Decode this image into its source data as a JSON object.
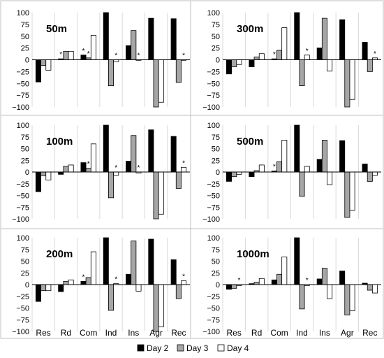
{
  "legend": {
    "entries": [
      {
        "label": "Day 2",
        "color": "#000000"
      },
      {
        "label": "Day 3",
        "color": "#a6a6a6"
      },
      {
        "label": "Day 4",
        "color": "#ffffff"
      }
    ]
  },
  "chart_data": [
    {
      "type": "bar",
      "title": "50m",
      "categories": [
        "Res",
        "Rd",
        "Com",
        "Ind",
        "Ins",
        "Agr",
        "Rec"
      ],
      "ylim": [
        -100,
        100
      ],
      "yticks": [
        -100,
        -75,
        -50,
        -25,
        0,
        25,
        50,
        75,
        100
      ],
      "tick_labels": [
        "−100",
        "−75",
        "−50",
        "−25",
        "0",
        "25",
        "50",
        "75",
        "100"
      ],
      "grid": false,
      "series": [
        {
          "name": "Day 2",
          "values": [
            -47,
            2,
            10,
            100,
            30,
            88,
            87
          ]
        },
        {
          "name": "Day 3",
          "values": [
            -12,
            18,
            4,
            -55,
            62,
            -100,
            -48
          ]
        },
        {
          "name": "Day 4",
          "values": [
            -22,
            18,
            52,
            -4,
            -1,
            -90,
            0
          ]
        }
      ],
      "asterisks": [
        [
          "Rd",
          0
        ],
        [
          "Com",
          0
        ],
        [
          "Com",
          1
        ],
        [
          "Ind",
          2
        ],
        [
          "Ins",
          2
        ],
        [
          "Rec",
          2
        ]
      ]
    },
    {
      "type": "bar",
      "title": "300m",
      "categories": [
        "Res",
        "Rd",
        "Com",
        "Ind",
        "Ins",
        "Agr",
        "Rec"
      ],
      "ylim": [
        -100,
        100
      ],
      "yticks": [
        -100,
        -75,
        -50,
        -25,
        0,
        25,
        50,
        75,
        100
      ],
      "tick_labels": [
        "−100",
        "−75",
        "−50",
        "−25",
        "0",
        "25",
        "50",
        "75",
        "100"
      ],
      "grid": false,
      "series": [
        {
          "name": "Day 2",
          "values": [
            -30,
            -15,
            2,
            100,
            25,
            85,
            37
          ]
        },
        {
          "name": "Day 3",
          "values": [
            -15,
            6,
            20,
            -55,
            88,
            -100,
            -25
          ]
        },
        {
          "name": "Day 4",
          "values": [
            -10,
            13,
            68,
            10,
            -24,
            -84,
            4
          ]
        }
      ],
      "asterisks": [
        [
          "Com",
          0
        ],
        [
          "Ind",
          2
        ],
        [
          "Rec",
          2
        ]
      ]
    },
    {
      "type": "bar",
      "title": "100m",
      "categories": [
        "Res",
        "Rd",
        "Com",
        "Ind",
        "Ins",
        "Agr",
        "Rec"
      ],
      "ylim": [
        -100,
        100
      ],
      "yticks": [
        -100,
        -75,
        -50,
        -25,
        0,
        25,
        50,
        75,
        100
      ],
      "tick_labels": [
        "−100",
        "−75",
        "−50",
        "−25",
        "0",
        "25",
        "50",
        "75",
        "100"
      ],
      "grid": false,
      "series": [
        {
          "name": "Day 2",
          "values": [
            -42,
            -5,
            20,
            100,
            23,
            90,
            76
          ]
        },
        {
          "name": "Day 3",
          "values": [
            -8,
            12,
            8,
            -55,
            78,
            -100,
            -35
          ]
        },
        {
          "name": "Day 4",
          "values": [
            -17,
            15,
            60,
            -7,
            -2,
            -90,
            10
          ]
        }
      ],
      "asterisks": [
        [
          "Com",
          1
        ],
        [
          "Ind",
          2
        ],
        [
          "Ins",
          2
        ],
        [
          "Rec",
          2
        ]
      ]
    },
    {
      "type": "bar",
      "title": "500m",
      "categories": [
        "Res",
        "Rd",
        "Com",
        "Ind",
        "Ins",
        "Agr",
        "Rec"
      ],
      "ylim": [
        -100,
        100
      ],
      "yticks": [
        -100,
        -75,
        -50,
        -25,
        0,
        25,
        50,
        75,
        100
      ],
      "tick_labels": [
        "−100",
        "−75",
        "−50",
        "−25",
        "0",
        "25",
        "50",
        "75",
        "100"
      ],
      "grid": false,
      "series": [
        {
          "name": "Day 2",
          "values": [
            -20,
            -10,
            2,
            100,
            27,
            67,
            17
          ]
        },
        {
          "name": "Day 3",
          "values": [
            -10,
            3,
            22,
            -52,
            68,
            -97,
            -20
          ]
        },
        {
          "name": "Day 4",
          "values": [
            -5,
            15,
            68,
            12,
            -27,
            -82,
            -7
          ]
        }
      ],
      "asterisks": [
        [
          "Com",
          0
        ]
      ]
    },
    {
      "type": "bar",
      "title": "200m",
      "categories": [
        "Res",
        "Rd",
        "Com",
        "Ind",
        "Ins",
        "Agr",
        "Rec"
      ],
      "ylim": [
        -100,
        100
      ],
      "yticks": [
        -100,
        -75,
        -50,
        -25,
        0,
        25,
        50,
        75,
        100
      ],
      "tick_labels": [
        "−100",
        "−75",
        "−50",
        "−25",
        "0",
        "25",
        "50",
        "75",
        "100"
      ],
      "grid": false,
      "series": [
        {
          "name": "Day 2",
          "values": [
            -36,
            -15,
            7,
            100,
            22,
            97,
            53
          ]
        },
        {
          "name": "Day 3",
          "values": [
            -13,
            7,
            15,
            -55,
            93,
            -100,
            -30
          ]
        },
        {
          "name": "Day 4",
          "values": [
            -13,
            10,
            70,
            2,
            -14,
            -90,
            8
          ]
        }
      ],
      "asterisks": [
        [
          "Com",
          0
        ],
        [
          "Ind",
          2
        ],
        [
          "Rec",
          2
        ]
      ]
    },
    {
      "type": "bar",
      "title": "1000m",
      "categories": [
        "Res",
        "Rd",
        "Com",
        "Ind",
        "Ins",
        "Agr",
        "Rec"
      ],
      "ylim": [
        -100,
        100
      ],
      "yticks": [
        -100,
        -75,
        -50,
        -25,
        0,
        25,
        50,
        75,
        100
      ],
      "tick_labels": [
        "−100",
        "−75",
        "−50",
        "−25",
        "0",
        "25",
        "50",
        "75",
        "100"
      ],
      "grid": false,
      "series": [
        {
          "name": "Day 2",
          "values": [
            -10,
            2,
            10,
            100,
            12,
            29,
            3
          ]
        },
        {
          "name": "Day 3",
          "values": [
            -8,
            5,
            22,
            -52,
            35,
            -65,
            -12
          ]
        },
        {
          "name": "Day 4",
          "values": [
            -2,
            13,
            59,
            -2,
            -30,
            -56,
            -18
          ]
        }
      ],
      "asterisks": [
        [
          "Res",
          2
        ],
        [
          "Ind",
          2
        ]
      ]
    }
  ]
}
